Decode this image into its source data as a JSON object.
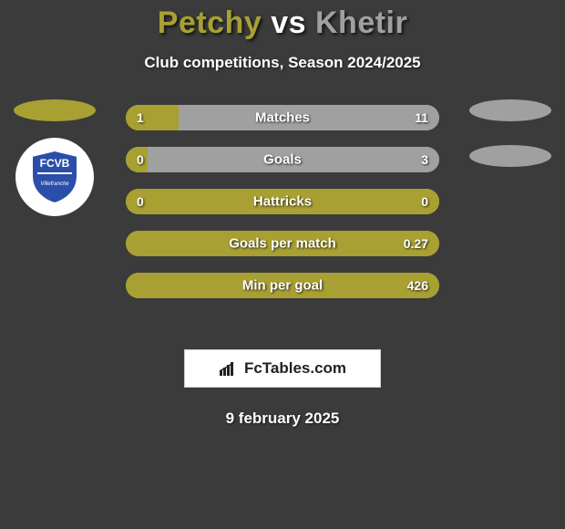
{
  "background_color": "#3b3b3b",
  "title": {
    "player1": "Petchy",
    "vs": "vs",
    "player2": "Khetir",
    "color_p1": "#a8a032",
    "color_vs": "#ffffff",
    "color_p2": "#a0a0a0",
    "fontsize": 34
  },
  "subtitle": "Club competitions, Season 2024/2025",
  "side": {
    "left_ellipse_color": "#a8a032",
    "right_ellipse_color": "#a0a0a0",
    "club_logo_text": "FCVB",
    "shield_fill": "#2b4fa8",
    "shield_stroke": "#ffffff"
  },
  "bars": {
    "track_color": "#a8a032",
    "left_fill_color": "#a8a032",
    "right_fill_color": "#a0a0a0",
    "label_color": "#ffffff",
    "value_color": "#ffffff",
    "height": 28,
    "radius": 14,
    "rows": [
      {
        "label": "Matches",
        "left": "1",
        "right": "11",
        "left_pct": 17,
        "right_pct": 83
      },
      {
        "label": "Goals",
        "left": "0",
        "right": "3",
        "left_pct": 7,
        "right_pct": 93
      },
      {
        "label": "Hattricks",
        "left": "0",
        "right": "0",
        "left_pct": 100,
        "right_pct": 0
      },
      {
        "label": "Goals per match",
        "left": "",
        "right": "0.27",
        "left_pct": 100,
        "right_pct": 0
      },
      {
        "label": "Min per goal",
        "left": "",
        "right": "426",
        "left_pct": 100,
        "right_pct": 0
      }
    ]
  },
  "brand": {
    "text": "FcTables.com",
    "box_bg": "#ffffff"
  },
  "date": "9 february 2025"
}
